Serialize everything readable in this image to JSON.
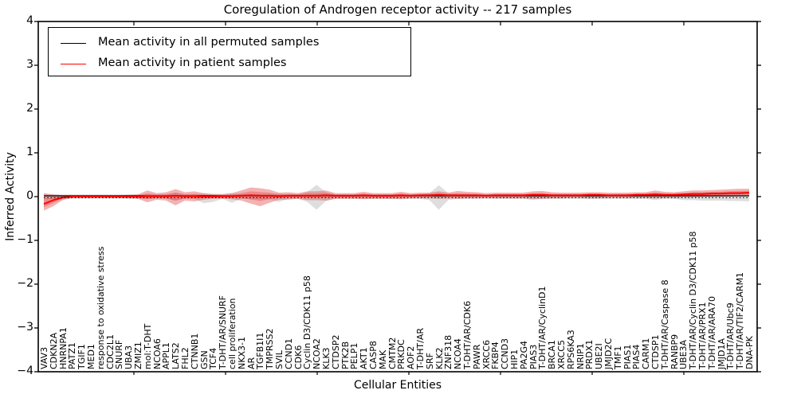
{
  "chart_data": {
    "type": "line",
    "title": "Coregulation of Androgen receptor activity -- 217 samples",
    "xlabel": "Cellular Entities",
    "ylabel": "Inferred Activity",
    "ylim": [
      -4,
      4
    ],
    "ytick_labels": [
      "4",
      "3",
      "2",
      "1",
      "0",
      "−1",
      "−2",
      "−3",
      "−4"
    ],
    "grid": false,
    "legend_position": "upper left",
    "categories": [
      "VAV3",
      "CDKN2A",
      "HNRNPA1",
      "PATZ1",
      "TGIF1",
      "MED1",
      "response to oxidative stress",
      "CDC2L1",
      "SNURF",
      "UBA3",
      "ZMIZ1",
      "mol:T-DHT",
      "NCOA6",
      "APPL1",
      "LATS2",
      "FHL2",
      "CTNNB1",
      "GSN",
      "TCF4",
      "T-DHT/AR/SNURF",
      "cell proliferation",
      "NKX3-1",
      "AR",
      "TGFB1I1",
      "TMPRSS2",
      "SVIL",
      "CCND1",
      "CDK6",
      "Cyclin D3/CDK11 p58",
      "NCOA2",
      "KLK3",
      "CTDSP2",
      "PTK2B",
      "PELP1",
      "AKT1",
      "CASP8",
      "MAK",
      "CMTM2",
      "PRKDC",
      "AOF2",
      "T-DHT/AR",
      "SRF",
      "KLK2",
      "ZNF318",
      "NCOA4",
      "T-DHT/AR/CDK6",
      "PAWR",
      "XRCC6",
      "FKBP4",
      "CCND3",
      "HIP1",
      "PA2G4",
      "PIAS3",
      "T-DHT/AR/CyclinD1",
      "BRCA1",
      "XRCC5",
      "RPS6KA3",
      "NRIP1",
      "PRDX1",
      "UBE2I",
      "JMJD2C",
      "TMF1",
      "PIAS1",
      "PIAS4",
      "CARM1",
      "CTDSP1",
      "T-DHT/AR/Caspase 8",
      "RANBP9",
      "UBE3A",
      "T-DHT/AR/Cyclin D3/CDK11 p58",
      "T-DHT/AR/PRX1",
      "T-DHT/AR/ARA70",
      "JMJD1A",
      "T-DHT/AR/Ubc9",
      "T-DHT/AR/TIF2/CARM1",
      "DNA-PK"
    ],
    "series": [
      {
        "name": "Mean activity in all permuted samples",
        "color": "#000000",
        "values": [
          0,
          0,
          0,
          0,
          0,
          0,
          0,
          0,
          0,
          0,
          0,
          0,
          0,
          0,
          0,
          0,
          0,
          0,
          0,
          0,
          0,
          0,
          0,
          0,
          0,
          0,
          0,
          0,
          0,
          0,
          0,
          0,
          0,
          0,
          0,
          0,
          0,
          0,
          0,
          0,
          0,
          0,
          0,
          0,
          0,
          0,
          0,
          0,
          0,
          0,
          0,
          0,
          0,
          0,
          0,
          0,
          0,
          0,
          0,
          0,
          0,
          0,
          0,
          0,
          0,
          0,
          0,
          0,
          0,
          0,
          0,
          0,
          0,
          0,
          0,
          0
        ]
      },
      {
        "name": "Mean activity in patient samples",
        "color": "#ff0000",
        "values": [
          -0.17,
          -0.08,
          -0.02,
          0,
          0,
          0,
          0,
          0,
          0,
          0,
          0,
          0.01,
          0.01,
          0.01,
          0.02,
          0.01,
          0.01,
          0,
          0,
          0.01,
          0.01,
          0.02,
          0.03,
          0.02,
          0.02,
          0.01,
          0.02,
          0.02,
          0.02,
          0.02,
          0.03,
          0.02,
          0.02,
          0.02,
          0.03,
          0.02,
          0.02,
          0.02,
          0.03,
          0.02,
          0.03,
          0.03,
          0.04,
          0.03,
          0.03,
          0.03,
          0.03,
          0.02,
          0.03,
          0.03,
          0.03,
          0.03,
          0.04,
          0.04,
          0.03,
          0.03,
          0.03,
          0.03,
          0.04,
          0.04,
          0.03,
          0.03,
          0.03,
          0.04,
          0.04,
          0.05,
          0.04,
          0.04,
          0.05,
          0.06,
          0.06,
          0.07,
          0.07,
          0.08,
          0.08,
          0.09
        ]
      }
    ],
    "bands": [
      {
        "name": "permuted samples range",
        "color": "#999999",
        "opacity": 0.32,
        "upper": [
          0.05,
          0.05,
          0.05,
          0.05,
          0.05,
          0.05,
          0.05,
          0.05,
          0.05,
          0.05,
          0.05,
          0.05,
          0.05,
          0.05,
          0.08,
          0.05,
          0.05,
          0.07,
          0.06,
          0.05,
          0.08,
          0.05,
          0.06,
          0.06,
          0.06,
          0.07,
          0.05,
          0.05,
          0.1,
          0.27,
          0.1,
          0.05,
          0.05,
          0.05,
          0.05,
          0.05,
          0.05,
          0.05,
          0.05,
          0.05,
          0.05,
          0.08,
          0.26,
          0.08,
          0.05,
          0.05,
          0.05,
          0.05,
          0.05,
          0.05,
          0.05,
          0.05,
          0.07,
          0.05,
          0.05,
          0.05,
          0.05,
          0.05,
          0.06,
          0.05,
          0.05,
          0.05,
          0.05,
          0.05,
          0.05,
          0.07,
          0.05,
          0.05,
          0.07,
          0.08,
          0.08,
          0.08,
          0.09,
          0.09,
          0.1,
          0.1
        ],
        "lower": [
          -0.06,
          -0.05,
          -0.05,
          -0.05,
          -0.05,
          -0.05,
          -0.05,
          -0.05,
          -0.05,
          -0.05,
          -0.05,
          -0.05,
          -0.05,
          -0.05,
          -0.09,
          -0.05,
          -0.05,
          -0.15,
          -0.12,
          -0.05,
          -0.14,
          -0.05,
          -0.06,
          -0.06,
          -0.06,
          -0.12,
          -0.05,
          -0.05,
          -0.12,
          -0.3,
          -0.1,
          -0.05,
          -0.05,
          -0.05,
          -0.05,
          -0.05,
          -0.05,
          -0.06,
          -0.05,
          -0.05,
          -0.05,
          -0.08,
          -0.3,
          -0.08,
          -0.05,
          -0.05,
          -0.05,
          -0.05,
          -0.05,
          -0.05,
          -0.05,
          -0.05,
          -0.08,
          -0.05,
          -0.05,
          -0.05,
          -0.05,
          -0.05,
          -0.06,
          -0.05,
          -0.05,
          -0.05,
          -0.05,
          -0.05,
          -0.05,
          -0.08,
          -0.05,
          -0.05,
          -0.08,
          -0.08,
          -0.09,
          -0.09,
          -0.09,
          -0.1,
          -0.1,
          -0.11
        ]
      },
      {
        "name": "patient samples range",
        "color": "#e04040",
        "opacity": 0.4,
        "upper": [
          0.08,
          0.05,
          0.03,
          0.03,
          0.03,
          0.03,
          0.03,
          0.03,
          0.03,
          0.04,
          0.05,
          0.14,
          0.08,
          0.1,
          0.17,
          0.1,
          0.12,
          0.08,
          0.06,
          0.06,
          0.08,
          0.14,
          0.21,
          0.19,
          0.16,
          0.09,
          0.1,
          0.08,
          0.12,
          0.12,
          0.14,
          0.08,
          0.08,
          0.08,
          0.11,
          0.08,
          0.08,
          0.08,
          0.11,
          0.08,
          0.09,
          0.09,
          0.12,
          0.09,
          0.13,
          0.11,
          0.1,
          0.08,
          0.09,
          0.09,
          0.09,
          0.09,
          0.12,
          0.13,
          0.1,
          0.09,
          0.09,
          0.09,
          0.1,
          0.1,
          0.09,
          0.09,
          0.09,
          0.1,
          0.1,
          0.14,
          0.11,
          0.1,
          0.12,
          0.14,
          0.14,
          0.15,
          0.16,
          0.17,
          0.18,
          0.18
        ],
        "lower": [
          -0.32,
          -0.22,
          -0.08,
          -0.03,
          -0.03,
          -0.03,
          -0.03,
          -0.03,
          -0.03,
          -0.04,
          -0.05,
          -0.13,
          -0.07,
          -0.09,
          -0.2,
          -0.09,
          -0.11,
          -0.07,
          -0.05,
          -0.05,
          -0.06,
          -0.09,
          -0.16,
          -0.22,
          -0.14,
          -0.07,
          -0.07,
          -0.05,
          -0.08,
          -0.08,
          -0.09,
          -0.05,
          -0.05,
          -0.05,
          -0.06,
          -0.05,
          -0.05,
          -0.05,
          -0.06,
          -0.04,
          -0.04,
          -0.04,
          -0.05,
          -0.04,
          -0.05,
          -0.04,
          -0.04,
          -0.03,
          -0.04,
          -0.04,
          -0.04,
          -0.04,
          -0.05,
          -0.05,
          -0.04,
          -0.04,
          -0.03,
          -0.03,
          -0.04,
          -0.04,
          -0.03,
          -0.03,
          -0.03,
          -0.03,
          -0.03,
          -0.04,
          -0.03,
          -0.03,
          -0.02,
          -0.02,
          -0.01,
          -0.01,
          0,
          0,
          0.01,
          0.01
        ]
      }
    ]
  }
}
